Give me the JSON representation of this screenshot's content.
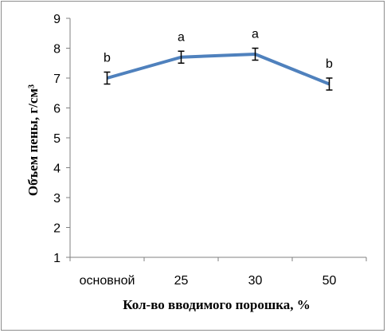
{
  "chart_data": {
    "type": "line",
    "categories": [
      "основной",
      "25",
      "30",
      "50"
    ],
    "series": [
      {
        "values": [
          7.0,
          7.7,
          7.8,
          6.8
        ],
        "errors": [
          0.2,
          0.2,
          0.2,
          0.2
        ],
        "labels": [
          "b",
          "a",
          "a",
          "b"
        ],
        "color": "#4f81bd"
      }
    ],
    "xlabel": "Кол-во вводимого порошка, %",
    "ylabel": "Объем пены, г/см³",
    "ylim": [
      1,
      9
    ],
    "yticks": [
      "1",
      "2",
      "3",
      "4",
      "5",
      "6",
      "7",
      "8",
      "9"
    ],
    "grid": false,
    "legend": "none"
  }
}
